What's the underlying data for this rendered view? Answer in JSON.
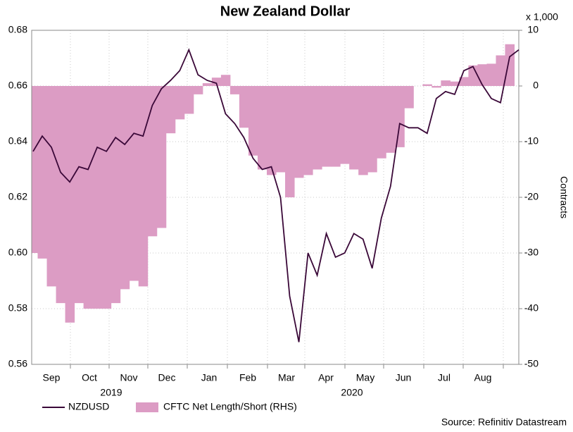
{
  "chart_data": {
    "type": "combo",
    "title": "New Zealand Dollar",
    "months": [
      "Sep",
      "Oct",
      "Nov",
      "Dec",
      "Jan",
      "Feb",
      "Mar",
      "Apr",
      "May",
      "Jun",
      "Jul",
      "Aug"
    ],
    "years": [
      "2019",
      "2020"
    ],
    "ylim": [
      0.56,
      0.68
    ],
    "yticks": [
      0.56,
      0.58,
      {
        "value": 0.6,
        "label": "0.60"
      },
      0.62,
      0.64,
      0.66,
      0.68
    ],
    "y2lim": [
      -50,
      10
    ],
    "y2ticks": [
      -50,
      -40,
      -30,
      -20,
      -10,
      0,
      10
    ],
    "y2_unit": "x 1,000",
    "y2_label": "Contracts",
    "grid": true,
    "source": "Source: Refinitiv Datastream",
    "series": [
      {
        "name": "CFTC Net Length/Short (RHS)",
        "type": "bar",
        "axis": "y2",
        "color": "#dc9cc4",
        "values": [
          -30,
          -31,
          -36,
          -39,
          -42.5,
          -39,
          -40,
          -40,
          -40,
          -39,
          -36.5,
          -35,
          -36,
          -27,
          -25.5,
          -8.5,
          -6,
          -5,
          -1.5,
          0.5,
          1.5,
          2,
          -1.5,
          -7.5,
          -12.5,
          -15,
          -16,
          -15.5,
          -20,
          -16.5,
          -16,
          -15,
          -14.5,
          -14.5,
          -14,
          -15,
          -16,
          -15.5,
          -13,
          -12,
          -11,
          -4,
          0,
          0.3,
          -0.3,
          1,
          0.8,
          1.6,
          3.7,
          3.9,
          4,
          5.5,
          7.5
        ]
      },
      {
        "name": "NZDUSD",
        "type": "line",
        "color": "#3a0838",
        "values": [
          0.6365,
          0.642,
          0.638,
          0.629,
          0.6255,
          0.631,
          0.63,
          0.638,
          0.6365,
          0.6415,
          0.639,
          0.643,
          0.642,
          0.653,
          0.659,
          0.662,
          0.6655,
          0.673,
          0.664,
          0.662,
          0.661,
          0.65,
          0.6465,
          0.6415,
          0.634,
          0.63,
          0.631,
          0.62,
          0.5845,
          0.568,
          0.6,
          0.592,
          0.607,
          0.5985,
          0.6,
          0.607,
          0.605,
          0.5945,
          0.6125,
          0.624,
          0.6465,
          0.645,
          0.645,
          0.643,
          0.6555,
          0.658,
          0.657,
          0.6655,
          0.667,
          0.6605,
          0.6555,
          0.654,
          0.6705,
          0.673
        ]
      }
    ]
  }
}
